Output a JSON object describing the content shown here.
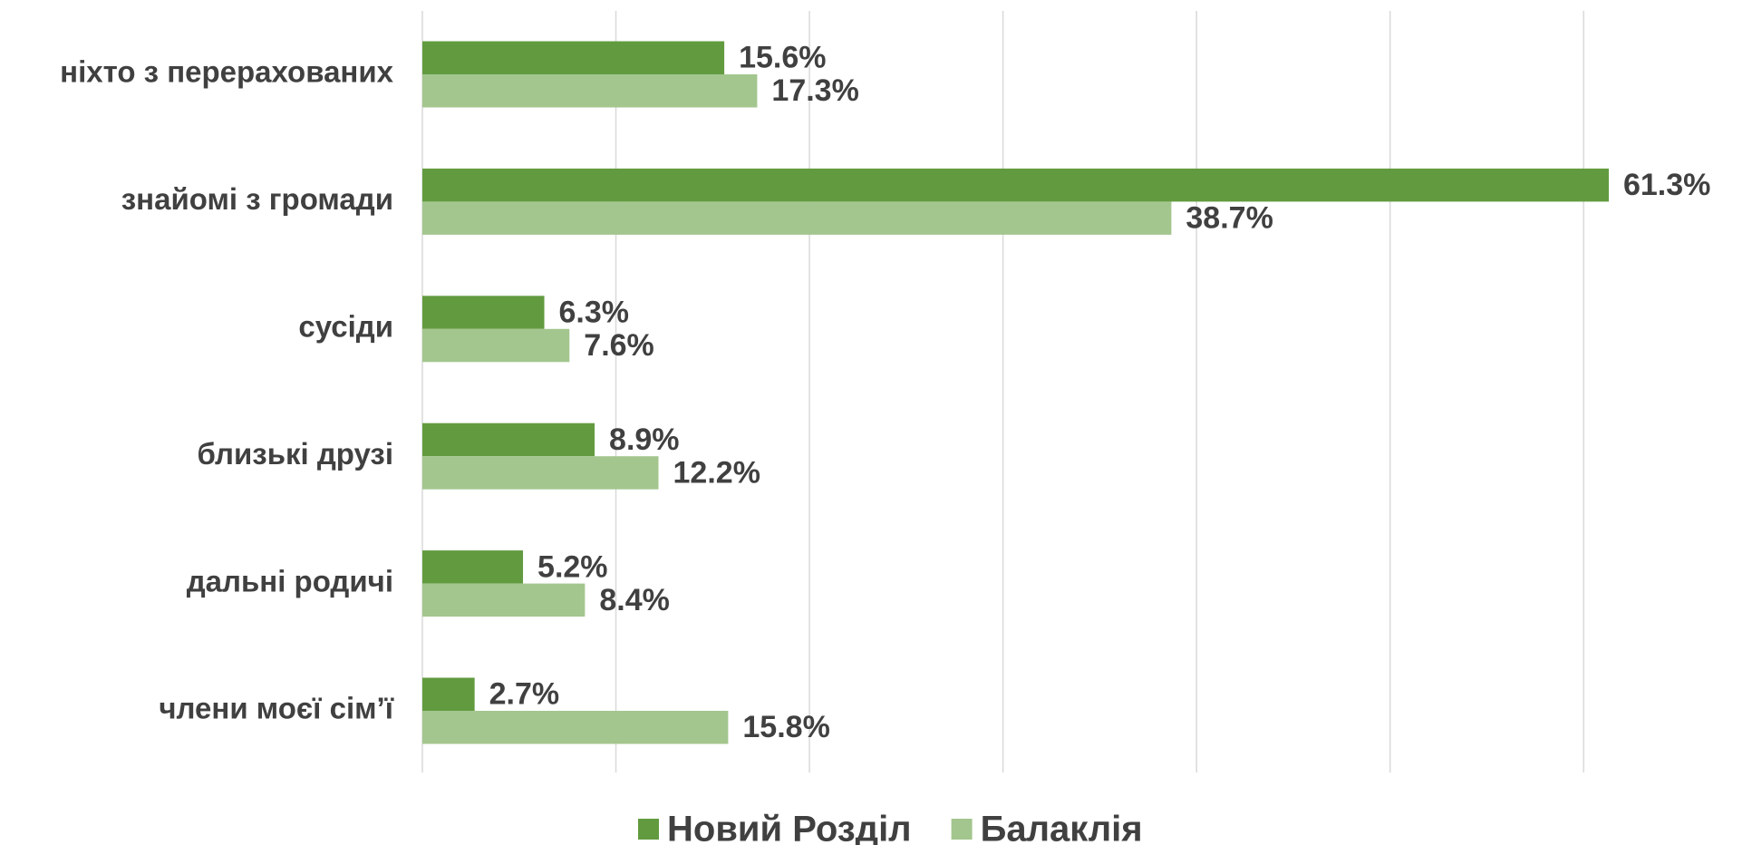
{
  "chart_data": {
    "type": "hbar",
    "categories": [
      "ніхто з перерахованих",
      "знайомі з громади",
      "сусіди",
      "близькі друзі",
      "дальні родичі",
      "члени моєї сім’ї"
    ],
    "series": [
      {
        "name": "Новий Розділ",
        "color": "#629b3f",
        "values": [
          15.6,
          61.3,
          6.3,
          8.9,
          5.2,
          2.7
        ],
        "value_labels": [
          "15.6%",
          "61.3%",
          "6.3%",
          "8.9%",
          "5.2%",
          "2.7%"
        ]
      },
      {
        "name": "Балаклія",
        "color": "#a3c68e",
        "values": [
          17.3,
          38.7,
          7.6,
          12.2,
          8.4,
          15.8
        ],
        "value_labels": [
          "17.3%",
          "38.7%",
          "7.6%",
          "12.2%",
          "8.4%",
          "15.8%"
        ]
      }
    ],
    "xlim": [
      0,
      65
    ],
    "xticks": [
      0,
      10,
      20,
      30,
      40,
      50,
      60
    ],
    "grid": true,
    "legend": "bottom"
  }
}
